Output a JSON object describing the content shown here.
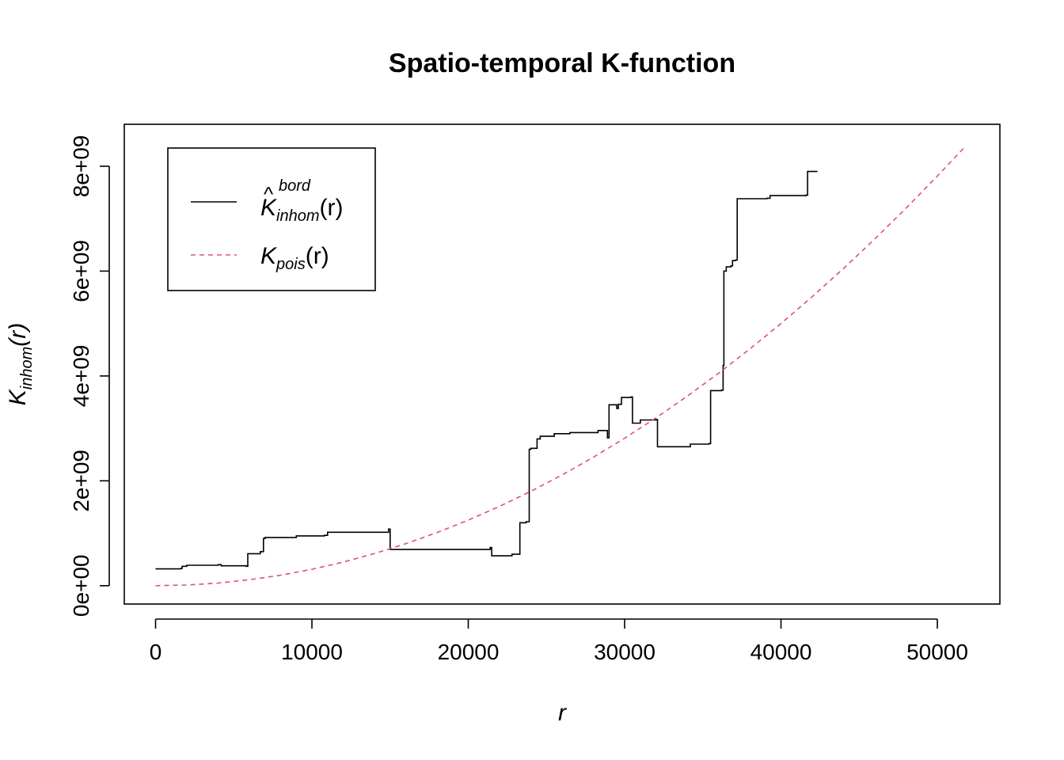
{
  "chart_data": {
    "type": "line",
    "title": "Spatio-temporal K-function",
    "xlabel": "r",
    "ylabel": {
      "main": "K",
      "sub": "inhom",
      "arg": "(r)"
    },
    "xlim": [
      -2000,
      54000
    ],
    "ylim": [
      -350000000,
      8800000000
    ],
    "x_ticks": [
      0,
      10000,
      20000,
      30000,
      40000,
      50000
    ],
    "x_tick_labels": [
      "0",
      "10000",
      "20000",
      "30000",
      "40000",
      "50000"
    ],
    "y_ticks": [
      0,
      2000000000,
      4000000000,
      6000000000,
      8000000000
    ],
    "y_tick_labels": [
      "0e+00",
      "2e+09",
      "4e+09",
      "6e+09",
      "8e+09"
    ],
    "grid": false,
    "legend_position": "top-left",
    "legend": [
      {
        "main": "K",
        "sub": "inhom",
        "sup": "bord",
        "arg": "(r)",
        "hat": "^"
      },
      {
        "main": "K",
        "sub": "pois",
        "arg": "(r)"
      }
    ],
    "series": [
      {
        "name": "K_inhom^bord(r)",
        "style": "solid",
        "color": "#000000",
        "x": [
          0,
          1600,
          1700,
          2000,
          4000,
          4200,
          5800,
          5900,
          6700,
          6900,
          7000,
          9000,
          10800,
          11000,
          14900,
          15000,
          21400,
          21500,
          22800,
          23300,
          23700,
          23900,
          24000,
          24400,
          24600,
          25500,
          26500,
          28300,
          28800,
          28900,
          29000,
          29500,
          29600,
          29800,
          30400,
          30500,
          31000,
          32000,
          32100,
          34000,
          34200,
          35400,
          35500,
          36200,
          36300,
          36350,
          36500,
          36800,
          36900,
          37100,
          37200,
          39100,
          39300,
          41600,
          41700,
          42300
        ],
        "y": [
          320000000,
          330000000,
          370000000,
          390000000,
          400000000,
          380000000,
          370000000,
          610000000,
          650000000,
          900000000,
          920000000,
          950000000,
          960000000,
          1020000000,
          1080000000,
          690000000,
          730000000,
          570000000,
          600000000,
          1200000000,
          1220000000,
          2600000000,
          2620000000,
          2800000000,
          2850000000,
          2900000000,
          2920000000,
          2960000000,
          2960000000,
          2820000000,
          3450000000,
          3380000000,
          3460000000,
          3590000000,
          3600000000,
          3100000000,
          3160000000,
          3170000000,
          2650000000,
          2650000000,
          2700000000,
          2710000000,
          3720000000,
          3730000000,
          4200000000,
          6000000000,
          6080000000,
          6100000000,
          6200000000,
          6210000000,
          7380000000,
          7390000000,
          7440000000,
          7450000000,
          7900000000,
          7910000000
        ]
      },
      {
        "name": "K_pois(r)",
        "style": "dashed",
        "color": "#DF536B",
        "x": [
          0,
          2000,
          4000,
          6000,
          8000,
          10000,
          12000,
          14000,
          16000,
          18000,
          20000,
          22000,
          24000,
          26000,
          28000,
          30000,
          32000,
          34000,
          36000,
          38000,
          40000,
          42000,
          44000,
          46000,
          48000,
          50000,
          51700
        ],
        "y": [
          0,
          12500000,
          50000000,
          113000000,
          200000000,
          313000000,
          450000000,
          613000000,
          800000000,
          1013000000,
          1250000000,
          1513000000,
          1800000000,
          2113000000,
          2450000000,
          2813000000,
          3200000000,
          3613000000,
          4050000000,
          4513000000,
          5000000000,
          5513000000,
          6050000000,
          6613000000,
          7200000000,
          7813000000,
          8350000000
        ]
      }
    ]
  }
}
